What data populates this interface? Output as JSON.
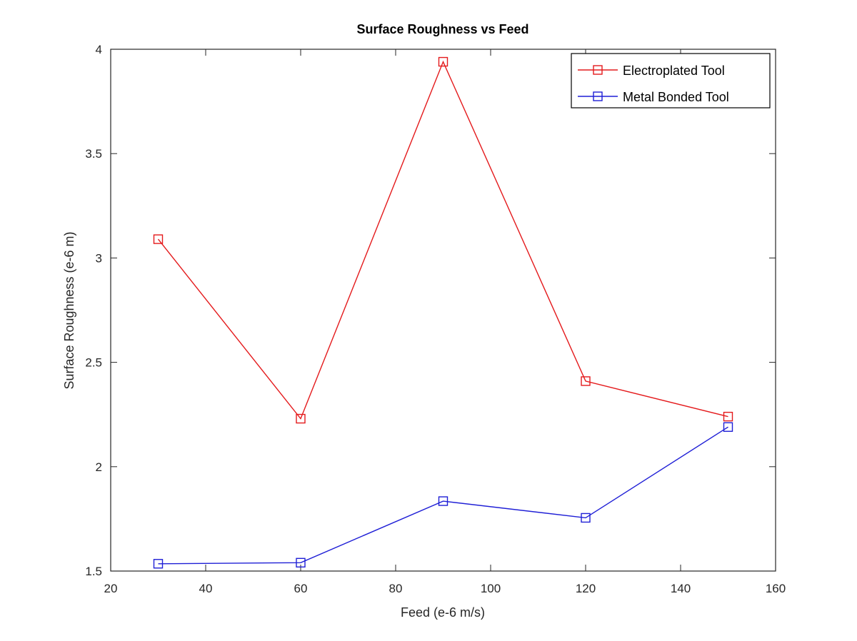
{
  "chart_data": {
    "type": "line",
    "title": "Surface Roughness vs Feed",
    "xlabel": "Feed (e-6 m/s)",
    "ylabel": "Surface Roughness (e-6 m)",
    "xlim": [
      20,
      160
    ],
    "ylim": [
      1.5,
      4
    ],
    "xticks": [
      20,
      40,
      60,
      80,
      100,
      120,
      140,
      160
    ],
    "yticks": [
      1.5,
      2,
      2.5,
      3,
      3.5,
      4
    ],
    "xtick_labels": [
      "20",
      "40",
      "60",
      "80",
      "100",
      "120",
      "140",
      "160"
    ],
    "ytick_labels": [
      "1.5",
      "2",
      "2.5",
      "3",
      "3.5",
      "4"
    ],
    "grid": false,
    "legend_position": "top-right",
    "marker": "square",
    "x": [
      30,
      60,
      90,
      120,
      150
    ],
    "series": [
      {
        "name": "Electroplated Tool",
        "color": "#e41a1c",
        "values": [
          3.09,
          2.23,
          3.94,
          2.41,
          2.24
        ]
      },
      {
        "name": "Metal Bonded Tool",
        "color": "#1f1fd6",
        "values": [
          1.535,
          1.54,
          1.835,
          1.755,
          2.19
        ]
      }
    ]
  }
}
